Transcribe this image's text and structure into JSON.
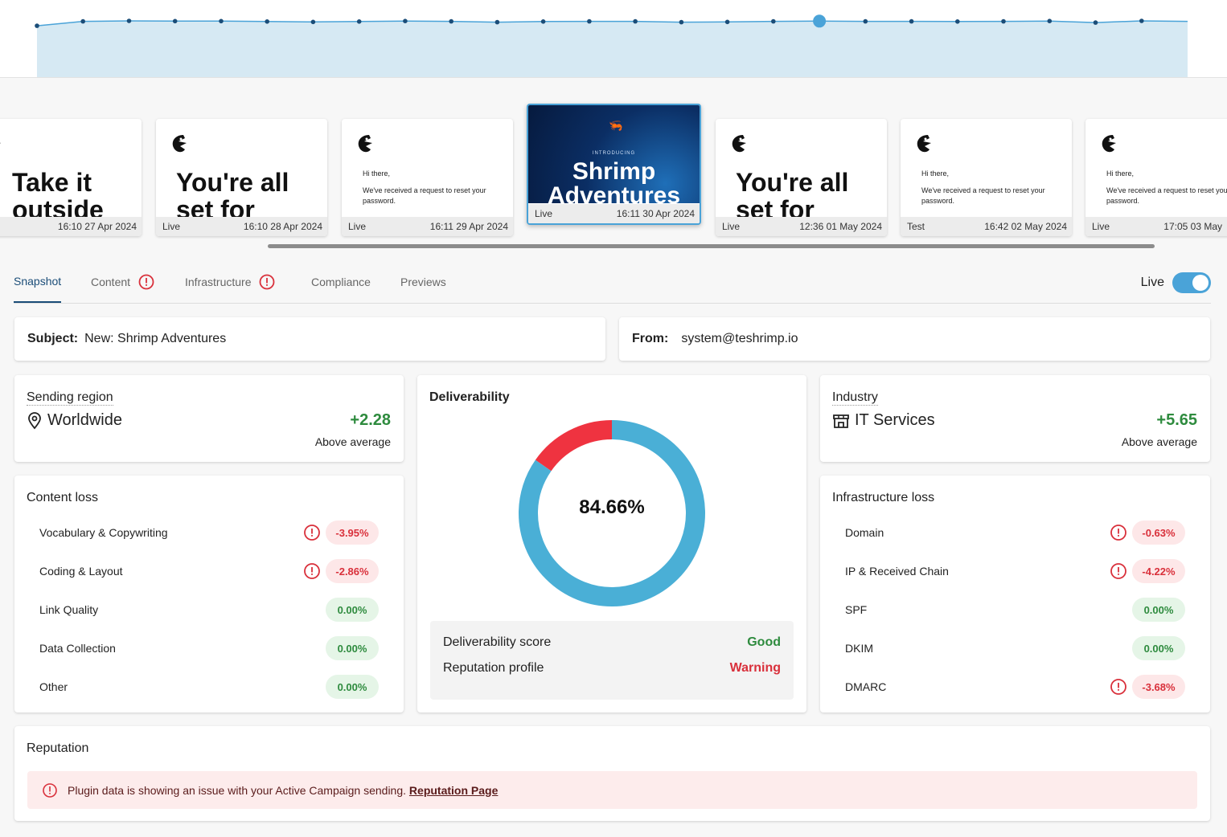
{
  "timeline": {
    "points": [
      0.62,
      0.96,
      1.0,
      0.98,
      0.98,
      0.95,
      0.92,
      0.95,
      0.99,
      0.96,
      0.9,
      0.95,
      0.96,
      0.96,
      0.9,
      0.92,
      0.96,
      0.98,
      0.96,
      0.96,
      0.95,
      0.96,
      0.99,
      0.87,
      1.0,
      0.96
    ],
    "selected_index": 17,
    "colors": {
      "line": "#4aa3d8",
      "fill": "#d6e9f3",
      "dot": "#1b4d78"
    }
  },
  "thumbnails": [
    {
      "type": "big",
      "text1": "Take it",
      "text2": "outside",
      "status": "",
      "time": "16:10 27 Apr 2024"
    },
    {
      "type": "big",
      "text1": "You're all",
      "text2": "set for",
      "status": "Live",
      "time": "16:10 28 Apr 2024"
    },
    {
      "type": "small",
      "line1": "Hi there,",
      "line2": "We've received a request to reset your password.",
      "status": "Live",
      "time": "16:11 29 Apr 2024"
    },
    {
      "type": "hero",
      "intro": "INTRODUCING",
      "title1": "Shrimp",
      "title2": "Adventures",
      "status": "Live",
      "time": "16:11 30 Apr 2024"
    },
    {
      "type": "big",
      "text1": "You're all",
      "text2": "set for",
      "status": "Live",
      "time": "12:36 01 May 2024"
    },
    {
      "type": "small",
      "line1": "Hi there,",
      "line2": "We've received a request to reset your password.",
      "status": "Test",
      "time": "16:42 02 May 2024"
    },
    {
      "type": "small",
      "line1": "Hi there,",
      "line2": "We've received a request to reset your password.",
      "status": "Live",
      "time": "17:05 03 May"
    }
  ],
  "tabs": {
    "snapshot": "Snapshot",
    "content": "Content",
    "infrastructure": "Infrastructure",
    "compliance": "Compliance",
    "previews": "Previews"
  },
  "live_toggle": {
    "label": "Live",
    "on": true
  },
  "subject": {
    "label": "Subject:",
    "value": "New: Shrimp Adventures"
  },
  "from": {
    "label": "From:",
    "value": "system@teshrimp.io"
  },
  "sending_region": {
    "title": "Sending region",
    "value": "Worldwide",
    "score": "+2.28",
    "note": "Above average"
  },
  "industry": {
    "title": "Industry",
    "value": "IT Services",
    "score": "+5.65",
    "note": "Above average"
  },
  "deliverability": {
    "title": "Deliverability",
    "percent": "84.66%",
    "fraction": 0.8466,
    "score_label": "Deliverability score",
    "score_value": "Good",
    "reputation_label": "Reputation profile",
    "reputation_value": "Warning",
    "colors": {
      "good": "#4aafd6",
      "bad": "#ef3340"
    }
  },
  "content_loss": {
    "title": "Content loss",
    "rows": [
      {
        "name": "Vocabulary & Copywriting",
        "value": "-3.95%",
        "alert": true
      },
      {
        "name": "Coding & Layout",
        "value": "-2.86%",
        "alert": true
      },
      {
        "name": "Link Quality",
        "value": "0.00%",
        "alert": false
      },
      {
        "name": "Data Collection",
        "value": "0.00%",
        "alert": false
      },
      {
        "name": "Other",
        "value": "0.00%",
        "alert": false
      }
    ]
  },
  "infrastructure_loss": {
    "title": "Infrastructure loss",
    "rows": [
      {
        "name": "Domain",
        "value": "-0.63%",
        "alert": true
      },
      {
        "name": "IP & Received Chain",
        "value": "-4.22%",
        "alert": true
      },
      {
        "name": "SPF",
        "value": "0.00%",
        "alert": false
      },
      {
        "name": "DKIM",
        "value": "0.00%",
        "alert": false
      },
      {
        "name": "DMARC",
        "value": "-3.68%",
        "alert": true
      }
    ]
  },
  "reputation": {
    "title": "Reputation",
    "message": "Plugin data is showing an issue with your Active Campaign sending.",
    "link": "Reputation Page"
  }
}
